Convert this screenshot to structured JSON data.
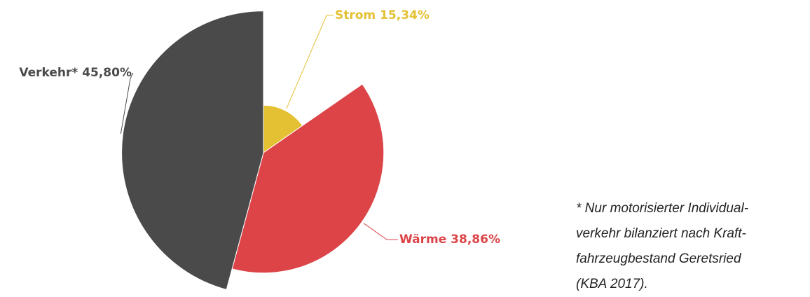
{
  "chart_data": {
    "type": "pie",
    "categories": [
      "Strom",
      "Wärme",
      "Verkehr*"
    ],
    "values": [
      15.34,
      38.86,
      45.8
    ],
    "value_labels": [
      "15,34%",
      "38,86%",
      "45,80%"
    ],
    "colors": [
      "#e3c132",
      "#dc4448",
      "#4a4a4a"
    ],
    "radius_by_value": true,
    "note": [
      "* Nur motorisierter Individual-",
      "verkehr bilanziert nach Kraft-",
      "fahrzeugbestand Geretsried",
      "(KBA 2017)."
    ]
  }
}
